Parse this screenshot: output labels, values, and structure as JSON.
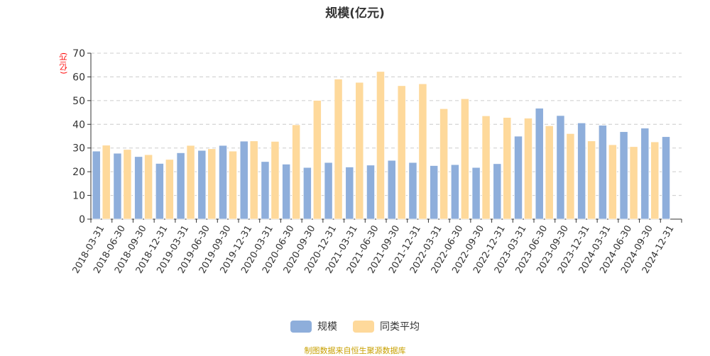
{
  "chart_data": {
    "type": "bar",
    "title": "规模(亿元)",
    "ylabel": "(亿元)",
    "xlabel": "",
    "ylim": [
      0,
      70
    ],
    "yticks": [
      0,
      10,
      20,
      30,
      40,
      50,
      60,
      70
    ],
    "grid": true,
    "legend_position": "bottom",
    "categories": [
      "2018-03-31",
      "2018-06-30",
      "2018-09-30",
      "2018-12-31",
      "2019-03-31",
      "2019-06-30",
      "2019-09-30",
      "2019-12-31",
      "2020-03-31",
      "2020-06-30",
      "2020-09-30",
      "2020-12-31",
      "2021-03-31",
      "2021-06-30",
      "2021-09-30",
      "2021-12-31",
      "2022-03-31",
      "2022-06-30",
      "2022-09-30",
      "2022-12-31",
      "2023-03-31",
      "2023-06-30",
      "2023-09-30",
      "2023-12-31",
      "2024-03-31",
      "2024-06-30",
      "2024-09-30",
      "2024-12-31"
    ],
    "series": [
      {
        "name": "规模",
        "color": "#8eaedb",
        "values": [
          28.7,
          27.8,
          26.4,
          23.5,
          28.0,
          29.0,
          31.1,
          32.9,
          24.3,
          23.2,
          21.8,
          23.9,
          22.0,
          22.8,
          24.8,
          23.9,
          22.6,
          23.0,
          21.8,
          23.4,
          35.0,
          46.8,
          43.7,
          40.6,
          39.6,
          36.9,
          38.4,
          34.8
        ]
      },
      {
        "name": "同类平均",
        "color": "#fed99b",
        "values": [
          31.2,
          29.4,
          27.2,
          25.2,
          31.1,
          29.7,
          28.7,
          33.0,
          32.8,
          39.8,
          50.1,
          59.1,
          57.7,
          62.3,
          56.3,
          57.1,
          46.6,
          50.8,
          43.6,
          42.9,
          42.6,
          39.4,
          36.1,
          33.0,
          31.4,
          30.6,
          32.6,
          null
        ]
      }
    ]
  },
  "source": "制图数据来自恒生聚源数据库"
}
